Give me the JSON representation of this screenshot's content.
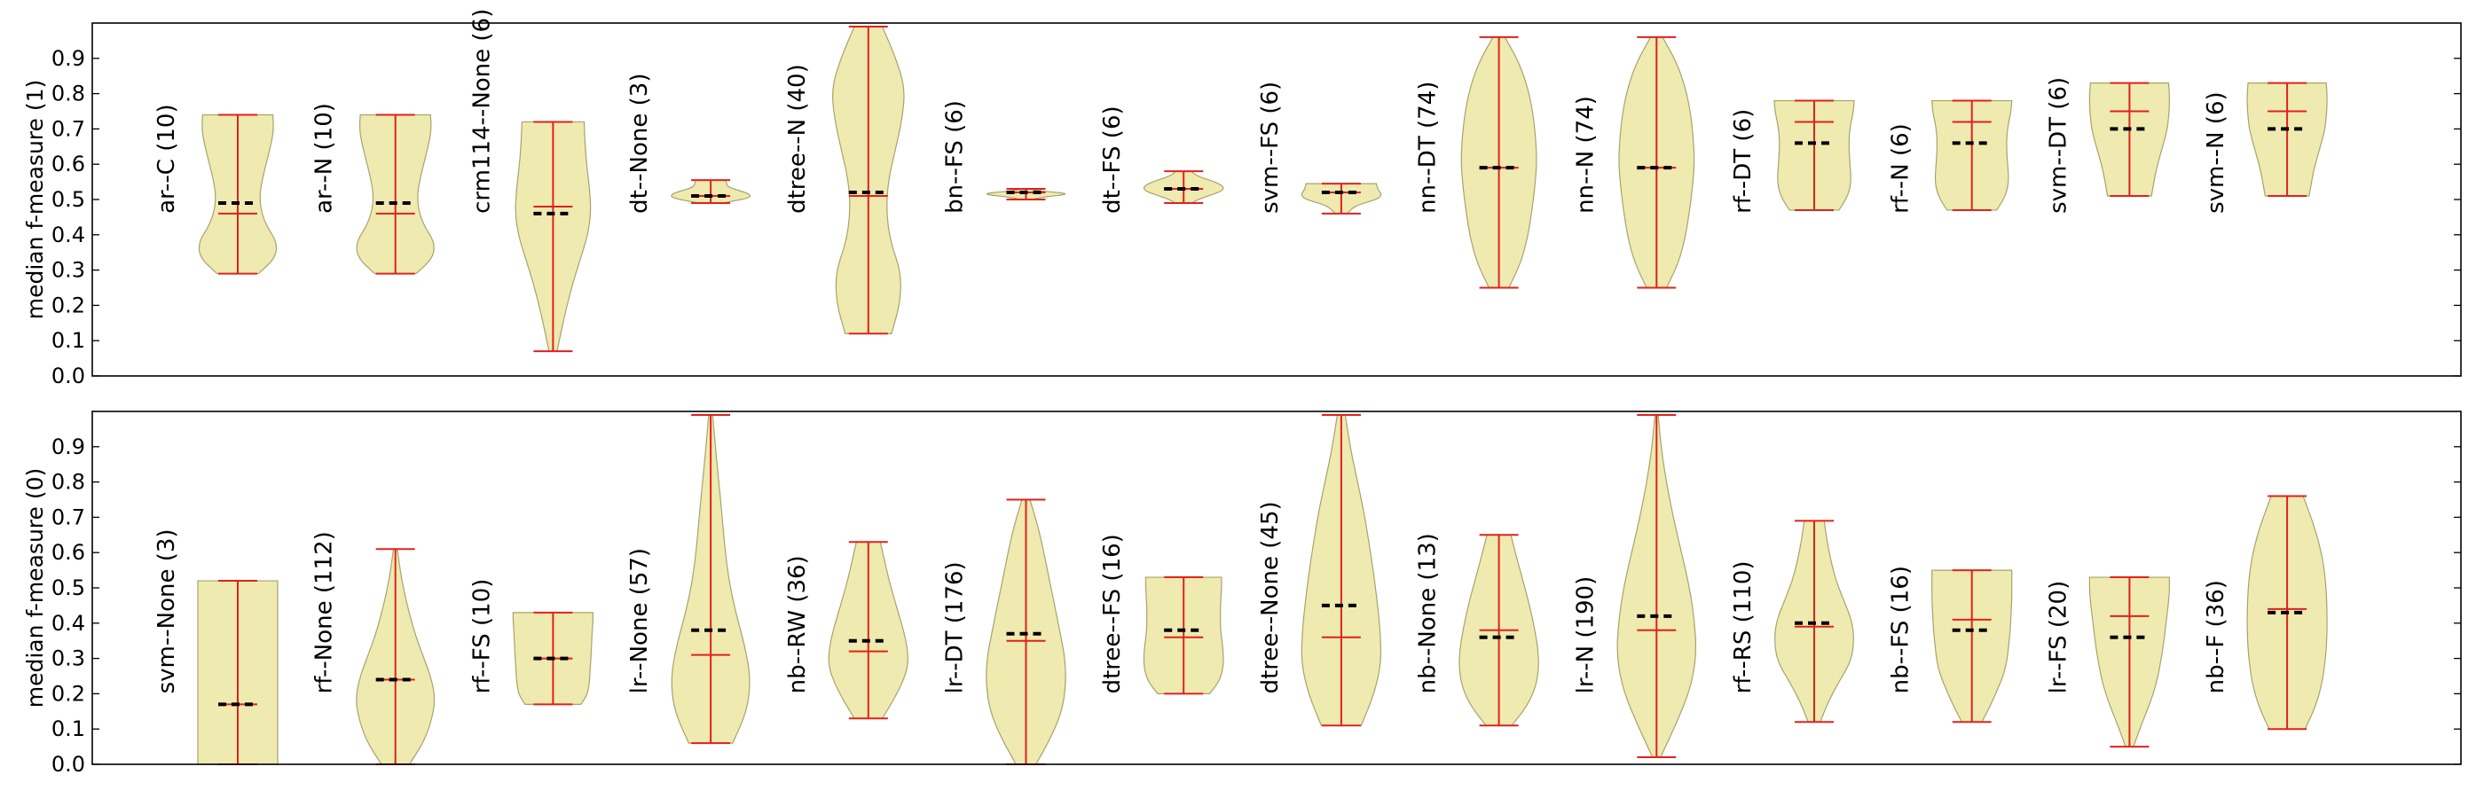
{
  "colors": {
    "body_fill": "#efeaaf",
    "body_edge": "#a7a36e",
    "lines": "#e0211e",
    "median": "#000000"
  },
  "chart_data": [
    {
      "type": "violin",
      "ylabel": "median f-measure (1)",
      "ylim": [
        0,
        1
      ],
      "yticks": [
        "0.0",
        "0.1",
        "0.2",
        "0.3",
        "0.4",
        "0.5",
        "0.6",
        "0.7",
        "0.8",
        "0.9"
      ],
      "grid": false,
      "violins": [
        {
          "label": "ar--C (10)",
          "min": 0.29,
          "max": 0.74,
          "mean": 0.46,
          "median": 0.49,
          "shape": [
            0.52,
            0.95,
            0.98,
            0.72,
            0.58,
            0.55,
            0.62,
            0.72,
            0.82,
            0.9,
            0.88
          ]
        },
        {
          "label": "ar--N (10)",
          "min": 0.29,
          "max": 0.74,
          "mean": 0.46,
          "median": 0.49,
          "shape": [
            0.52,
            0.95,
            0.98,
            0.72,
            0.58,
            0.55,
            0.62,
            0.72,
            0.82,
            0.9,
            0.88
          ]
        },
        {
          "label": "crm114--None (6)",
          "min": 0.07,
          "max": 0.72,
          "mean": 0.48,
          "median": 0.46,
          "shape": [
            0.1,
            0.22,
            0.35,
            0.5,
            0.68,
            0.86,
            0.95,
            0.92,
            0.85,
            0.8,
            0.78
          ]
        },
        {
          "label": "dt--None (3)",
          "min": 0.49,
          "max": 0.555,
          "mean": 0.51,
          "median": 0.51,
          "shape": [
            0.3,
            0.6,
            0.9,
            1.0,
            0.95,
            0.8,
            0.6,
            0.45,
            0.4,
            0.4,
            0.35
          ]
        },
        {
          "label": "dtree--N (40)",
          "min": 0.12,
          "max": 0.99,
          "mean": 0.51,
          "median": 0.52,
          "shape": [
            0.58,
            0.8,
            0.82,
            0.55,
            0.45,
            0.5,
            0.68,
            0.85,
            0.92,
            0.68,
            0.35
          ]
        },
        {
          "label": "bn--FS (6)",
          "min": 0.5,
          "max": 0.53,
          "mean": 0.52,
          "median": 0.52,
          "shape": [
            0.15,
            0.25,
            0.4,
            0.6,
            0.85,
            1.0,
            0.95,
            0.7,
            0.4,
            0.2,
            0.12
          ]
        },
        {
          "label": "dt--FS (6)",
          "min": 0.49,
          "max": 0.58,
          "mean": 0.53,
          "median": 0.53,
          "shape": [
            0.2,
            0.35,
            0.55,
            0.8,
            0.98,
            1.0,
            0.9,
            0.7,
            0.45,
            0.28,
            0.2
          ]
        },
        {
          "label": "svm--FS (6)",
          "min": 0.46,
          "max": 0.545,
          "mean": 0.52,
          "median": 0.52,
          "shape": [
            0.15,
            0.22,
            0.3,
            0.45,
            0.7,
            0.92,
            1.0,
            0.98,
            0.92,
            0.9,
            0.88
          ]
        },
        {
          "label": "nn--DT (74)",
          "min": 0.25,
          "max": 0.96,
          "mean": 0.59,
          "median": 0.59,
          "shape": [
            0.25,
            0.55,
            0.72,
            0.82,
            0.9,
            0.95,
            0.92,
            0.85,
            0.72,
            0.5,
            0.15
          ]
        },
        {
          "label": "nn--N (74)",
          "min": 0.25,
          "max": 0.96,
          "mean": 0.59,
          "median": 0.59,
          "shape": [
            0.25,
            0.55,
            0.72,
            0.82,
            0.9,
            0.95,
            0.92,
            0.85,
            0.72,
            0.5,
            0.15
          ]
        },
        {
          "label": "rf--DT (6)",
          "min": 0.47,
          "max": 0.78,
          "mean": 0.72,
          "median": 0.66,
          "shape": [
            0.62,
            0.8,
            0.9,
            0.92,
            0.9,
            0.88,
            0.87,
            0.88,
            0.92,
            0.98,
            1.0
          ]
        },
        {
          "label": "rf--N (6)",
          "min": 0.47,
          "max": 0.78,
          "mean": 0.72,
          "median": 0.66,
          "shape": [
            0.62,
            0.8,
            0.9,
            0.92,
            0.9,
            0.88,
            0.87,
            0.88,
            0.92,
            0.98,
            1.0
          ]
        },
        {
          "label": "svm--DT (6)",
          "min": 0.51,
          "max": 0.83,
          "mean": 0.75,
          "median": 0.7,
          "shape": [
            0.55,
            0.6,
            0.65,
            0.72,
            0.8,
            0.88,
            0.95,
            0.98,
            1.0,
            1.0,
            0.98
          ]
        },
        {
          "label": "svm--N (6)",
          "min": 0.51,
          "max": 0.83,
          "mean": 0.75,
          "median": 0.7,
          "shape": [
            0.55,
            0.6,
            0.65,
            0.72,
            0.8,
            0.88,
            0.95,
            0.98,
            1.0,
            1.0,
            0.98
          ]
        }
      ]
    },
    {
      "type": "violin",
      "ylabel": "median f-measure (0)",
      "ylim": [
        0,
        1
      ],
      "yticks": [
        "0.0",
        "0.1",
        "0.2",
        "0.3",
        "0.4",
        "0.5",
        "0.6",
        "0.7",
        "0.8",
        "0.9"
      ],
      "grid": false,
      "violins": [
        {
          "label": "svm--None (3)",
          "min": 0.0,
          "max": 0.52,
          "mean": 0.17,
          "median": 0.17,
          "shape": [
            1.0,
            1.0,
            1.0,
            1.0,
            1.0,
            1.0,
            1.0,
            1.0,
            1.0,
            1.0,
            1.0
          ]
        },
        {
          "label": "rf--None (112)",
          "min": 0.0,
          "max": 0.61,
          "mean": 0.24,
          "median": 0.24,
          "shape": [
            0.35,
            0.7,
            0.9,
            1.0,
            0.9,
            0.7,
            0.5,
            0.35,
            0.22,
            0.12,
            0.05
          ]
        },
        {
          "label": "rf--FS (10)",
          "min": 0.17,
          "max": 0.43,
          "mean": 0.3,
          "median": 0.3,
          "shape": [
            0.7,
            0.85,
            0.9,
            0.92,
            0.93,
            0.95,
            0.96,
            0.97,
            0.98,
            1.0,
            1.0
          ]
        },
        {
          "label": "lr--None (57)",
          "min": 0.06,
          "max": 0.99,
          "mean": 0.31,
          "median": 0.38,
          "shape": [
            0.55,
            0.92,
            1.0,
            0.85,
            0.62,
            0.45,
            0.35,
            0.28,
            0.2,
            0.12,
            0.05
          ]
        },
        {
          "label": "nb--RW (36)",
          "min": 0.13,
          "max": 0.63,
          "mean": 0.32,
          "median": 0.35,
          "shape": [
            0.35,
            0.62,
            0.85,
            1.0,
            0.98,
            0.88,
            0.75,
            0.62,
            0.5,
            0.4,
            0.3
          ]
        },
        {
          "label": "lr--DT (176)",
          "min": 0.0,
          "max": 0.75,
          "mean": 0.35,
          "median": 0.37,
          "shape": [
            0.25,
            0.62,
            0.9,
            1.0,
            0.98,
            0.85,
            0.72,
            0.58,
            0.45,
            0.3,
            0.1
          ]
        },
        {
          "label": "dtree--FS (16)",
          "min": 0.2,
          "max": 0.53,
          "mean": 0.36,
          "median": 0.38,
          "shape": [
            0.65,
            0.88,
            0.98,
            1.0,
            0.98,
            0.94,
            0.92,
            0.92,
            0.93,
            0.95,
            0.95
          ]
        },
        {
          "label": "dtree--None (45)",
          "min": 0.11,
          "max": 0.99,
          "mean": 0.36,
          "median": 0.45,
          "shape": [
            0.5,
            0.82,
            1.0,
            0.98,
            0.9,
            0.8,
            0.68,
            0.55,
            0.38,
            0.22,
            0.1
          ]
        },
        {
          "label": "nb--None (13)",
          "min": 0.11,
          "max": 0.65,
          "mean": 0.38,
          "median": 0.36,
          "shape": [
            0.32,
            0.7,
            0.92,
            1.0,
            0.98,
            0.9,
            0.8,
            0.68,
            0.55,
            0.42,
            0.3
          ]
        },
        {
          "label": "lr--N (190)",
          "min": 0.02,
          "max": 0.99,
          "mean": 0.38,
          "median": 0.42,
          "shape": [
            0.1,
            0.5,
            0.85,
            1.0,
            0.95,
            0.82,
            0.62,
            0.42,
            0.25,
            0.12,
            0.04
          ]
        },
        {
          "label": "rf--RS (110)",
          "min": 0.12,
          "max": 0.69,
          "mean": 0.39,
          "median": 0.4,
          "shape": [
            0.15,
            0.35,
            0.62,
            0.92,
            1.0,
            0.95,
            0.75,
            0.55,
            0.42,
            0.32,
            0.25
          ]
        },
        {
          "label": "nb--FS (16)",
          "min": 0.12,
          "max": 0.55,
          "mean": 0.41,
          "median": 0.38,
          "shape": [
            0.25,
            0.45,
            0.62,
            0.78,
            0.88,
            0.92,
            0.96,
            0.98,
            1.0,
            1.0,
            1.0
          ]
        },
        {
          "label": "lr--FS (20)",
          "min": 0.05,
          "max": 0.53,
          "mean": 0.42,
          "median": 0.36,
          "shape": [
            0.1,
            0.25,
            0.42,
            0.58,
            0.7,
            0.78,
            0.85,
            0.9,
            0.95,
            1.0,
            1.0
          ]
        },
        {
          "label": "nb--F (36)",
          "min": 0.1,
          "max": 0.76,
          "mean": 0.44,
          "median": 0.43,
          "shape": [
            0.45,
            0.72,
            0.88,
            0.96,
            1.0,
            1.0,
            0.98,
            0.92,
            0.8,
            0.62,
            0.4
          ]
        }
      ]
    }
  ]
}
